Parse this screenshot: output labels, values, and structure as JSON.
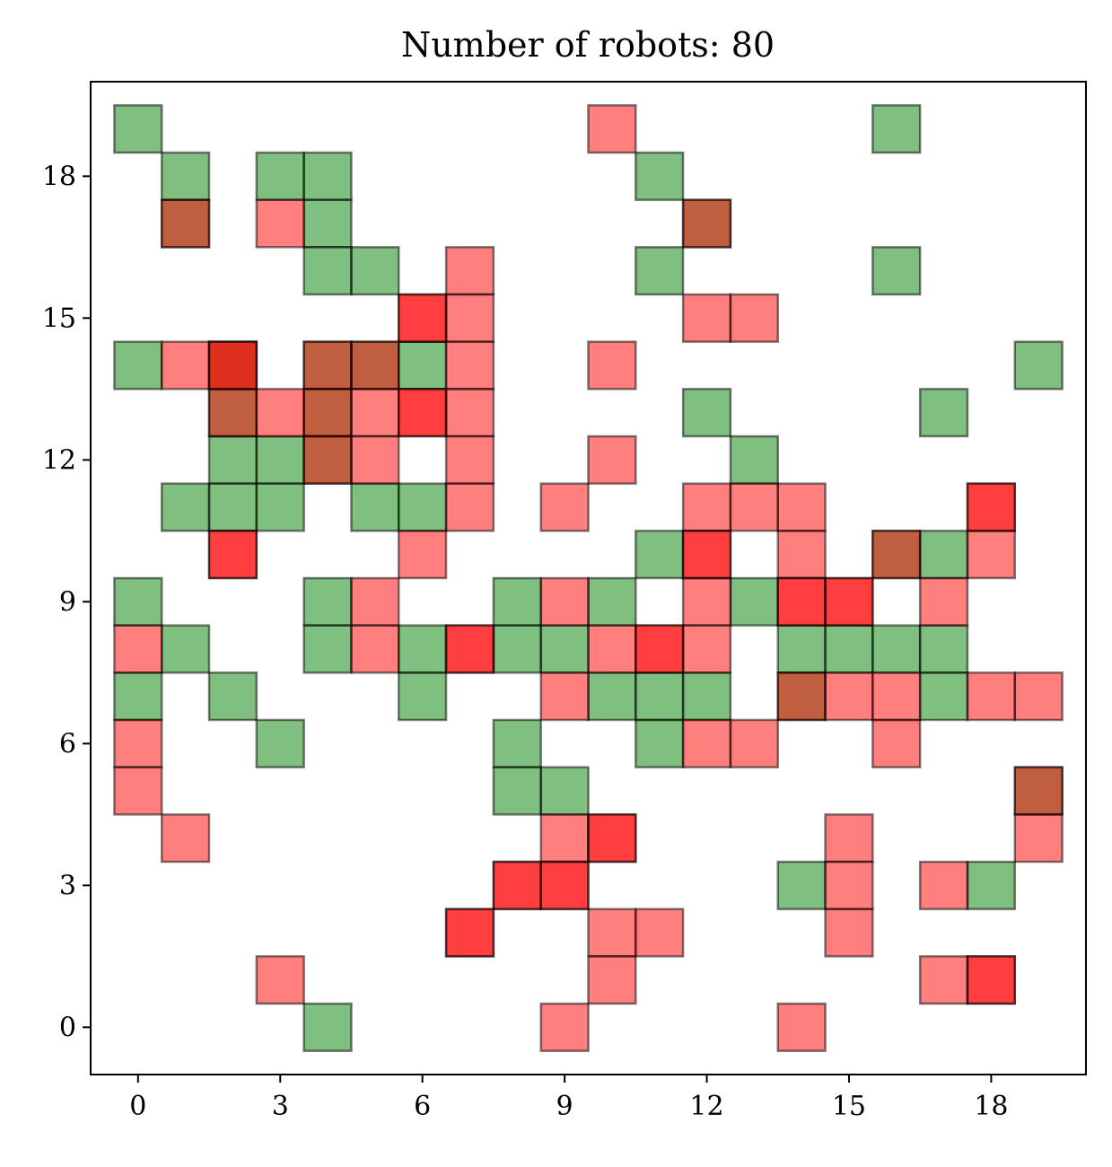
{
  "chart_data": {
    "type": "heatmap",
    "title": "Number of robots: 80",
    "xlabel": "",
    "ylabel": "",
    "xlim": [
      -1,
      20
    ],
    "ylim": [
      -1,
      20
    ],
    "xticks": [
      0,
      3,
      6,
      9,
      12,
      15,
      18
    ],
    "yticks": [
      0,
      3,
      6,
      9,
      12,
      15,
      18
    ],
    "grid": false,
    "legend": "none",
    "colors": {
      "green": "#008000",
      "red": "#ff0000",
      "overlap_green_red": "#7a7a3c",
      "overlap_red_red": "#c0583c",
      "cell_edge": "#000000"
    },
    "series": [
      {
        "color": "green",
        "cells": [
          [
            0,
            19
          ],
          [
            16,
            19
          ],
          [
            1,
            18
          ],
          [
            3,
            18
          ],
          [
            4,
            18
          ],
          [
            11,
            18
          ],
          [
            1,
            17
          ],
          [
            4,
            17
          ],
          [
            12,
            17
          ],
          [
            4,
            16
          ],
          [
            5,
            16
          ],
          [
            11,
            16
          ],
          [
            16,
            16
          ],
          [
            0,
            14
          ],
          [
            2,
            14
          ],
          [
            4,
            14
          ],
          [
            5,
            14
          ],
          [
            6,
            14
          ],
          [
            19,
            14
          ],
          [
            2,
            13
          ],
          [
            4,
            13
          ],
          [
            12,
            13
          ],
          [
            17,
            13
          ],
          [
            2,
            12
          ],
          [
            3,
            12
          ],
          [
            4,
            12
          ],
          [
            13,
            12
          ],
          [
            1,
            11
          ],
          [
            2,
            11
          ],
          [
            3,
            11
          ],
          [
            5,
            11
          ],
          [
            6,
            11
          ],
          [
            11,
            10
          ],
          [
            16,
            10
          ],
          [
            17,
            10
          ],
          [
            0,
            9
          ],
          [
            4,
            9
          ],
          [
            8,
            9
          ],
          [
            10,
            9
          ],
          [
            13,
            9
          ],
          [
            1,
            8
          ],
          [
            4,
            8
          ],
          [
            6,
            8
          ],
          [
            8,
            8
          ],
          [
            9,
            8
          ],
          [
            14,
            8
          ],
          [
            15,
            8
          ],
          [
            16,
            8
          ],
          [
            17,
            8
          ],
          [
            0,
            7
          ],
          [
            2,
            7
          ],
          [
            6,
            7
          ],
          [
            10,
            7
          ],
          [
            11,
            7
          ],
          [
            12,
            7
          ],
          [
            14,
            7
          ],
          [
            17,
            7
          ],
          [
            3,
            6
          ],
          [
            8,
            6
          ],
          [
            11,
            6
          ],
          [
            8,
            5
          ],
          [
            9,
            5
          ],
          [
            19,
            5
          ],
          [
            14,
            3
          ],
          [
            18,
            3
          ],
          [
            4,
            0
          ]
        ]
      },
      {
        "color": "red",
        "cells": [
          [
            10,
            19
          ],
          [
            1,
            17
          ],
          [
            3,
            17
          ],
          [
            12,
            17
          ],
          [
            7,
            16
          ],
          [
            6,
            15
          ],
          [
            7,
            15
          ],
          [
            12,
            15
          ],
          [
            13,
            15
          ],
          [
            1,
            14
          ],
          [
            2,
            14
          ],
          [
            4,
            14
          ],
          [
            5,
            14
          ],
          [
            7,
            14
          ],
          [
            10,
            14
          ],
          [
            2,
            13
          ],
          [
            3,
            13
          ],
          [
            4,
            13
          ],
          [
            5,
            13
          ],
          [
            6,
            13
          ],
          [
            7,
            13
          ],
          [
            4,
            12
          ],
          [
            5,
            12
          ],
          [
            7,
            12
          ],
          [
            10,
            12
          ],
          [
            7,
            11
          ],
          [
            9,
            11
          ],
          [
            12,
            11
          ],
          [
            13,
            11
          ],
          [
            14,
            11
          ],
          [
            18,
            11
          ],
          [
            2,
            10
          ],
          [
            6,
            10
          ],
          [
            12,
            10
          ],
          [
            14,
            10
          ],
          [
            16,
            10
          ],
          [
            18,
            10
          ],
          [
            5,
            9
          ],
          [
            9,
            9
          ],
          [
            12,
            9
          ],
          [
            14,
            9
          ],
          [
            15,
            9
          ],
          [
            17,
            9
          ],
          [
            0,
            8
          ],
          [
            5,
            8
          ],
          [
            7,
            8
          ],
          [
            10,
            8
          ],
          [
            11,
            8
          ],
          [
            12,
            8
          ],
          [
            9,
            7
          ],
          [
            14,
            7
          ],
          [
            15,
            7
          ],
          [
            16,
            7
          ],
          [
            18,
            7
          ],
          [
            19,
            7
          ],
          [
            0,
            6
          ],
          [
            12,
            6
          ],
          [
            13,
            6
          ],
          [
            16,
            6
          ],
          [
            0,
            5
          ],
          [
            19,
            5
          ],
          [
            1,
            4
          ],
          [
            9,
            4
          ],
          [
            10,
            4
          ],
          [
            15,
            4
          ],
          [
            19,
            4
          ],
          [
            8,
            3
          ],
          [
            9,
            3
          ],
          [
            15,
            3
          ],
          [
            17,
            3
          ],
          [
            7,
            2
          ],
          [
            10,
            2
          ],
          [
            11,
            2
          ],
          [
            15,
            2
          ],
          [
            3,
            1
          ],
          [
            10,
            1
          ],
          [
            17,
            1
          ],
          [
            18,
            1
          ],
          [
            9,
            0
          ],
          [
            14,
            0
          ]
        ]
      },
      {
        "color": "red",
        "cells": [
          [
            6,
            15
          ],
          [
            2,
            14
          ],
          [
            6,
            13
          ],
          [
            18,
            11
          ],
          [
            2,
            10
          ],
          [
            12,
            10
          ],
          [
            14,
            9
          ],
          [
            15,
            9
          ],
          [
            7,
            8
          ],
          [
            11,
            8
          ],
          [
            10,
            4
          ],
          [
            8,
            3
          ],
          [
            9,
            3
          ],
          [
            7,
            2
          ],
          [
            18,
            1
          ]
        ]
      }
    ]
  }
}
